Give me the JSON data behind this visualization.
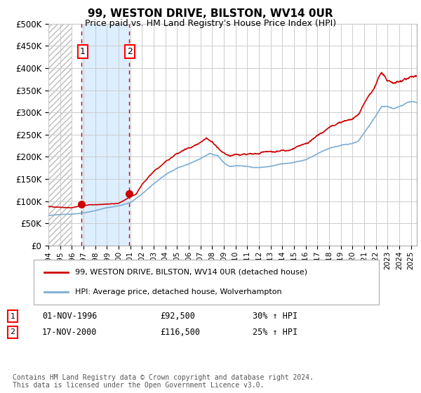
{
  "title": "99, WESTON DRIVE, BILSTON, WV14 0UR",
  "subtitle": "Price paid vs. HM Land Registry's House Price Index (HPI)",
  "legend_line1": "99, WESTON DRIVE, BILSTON, WV14 0UR (detached house)",
  "legend_line2": "HPI: Average price, detached house, Wolverhampton",
  "annotation1_label": "1",
  "annotation1_date": "01-NOV-1996",
  "annotation1_price": "£92,500",
  "annotation1_hpi": "30% ↑ HPI",
  "annotation2_label": "2",
  "annotation2_date": "17-NOV-2000",
  "annotation2_price": "£116,500",
  "annotation2_hpi": "25% ↑ HPI",
  "footer": "Contains HM Land Registry data © Crown copyright and database right 2024.\nThis data is licensed under the Open Government Licence v3.0.",
  "background_color": "#ffffff",
  "grid_color": "#cccccc",
  "red_line_color": "#cc0000",
  "blue_line_color": "#7aadd4",
  "shade_color": "#ddeeff",
  "dashed_line_color": "#cc0000",
  "sale1_x": 1996.833,
  "sale1_y": 92500,
  "sale2_x": 2000.875,
  "sale2_y": 116500,
  "xmin": 1994.0,
  "xmax": 2025.5,
  "ymin": 0,
  "ymax": 500000,
  "yticks": [
    0,
    50000,
    100000,
    150000,
    200000,
    250000,
    300000,
    350000,
    400000,
    450000,
    500000
  ]
}
